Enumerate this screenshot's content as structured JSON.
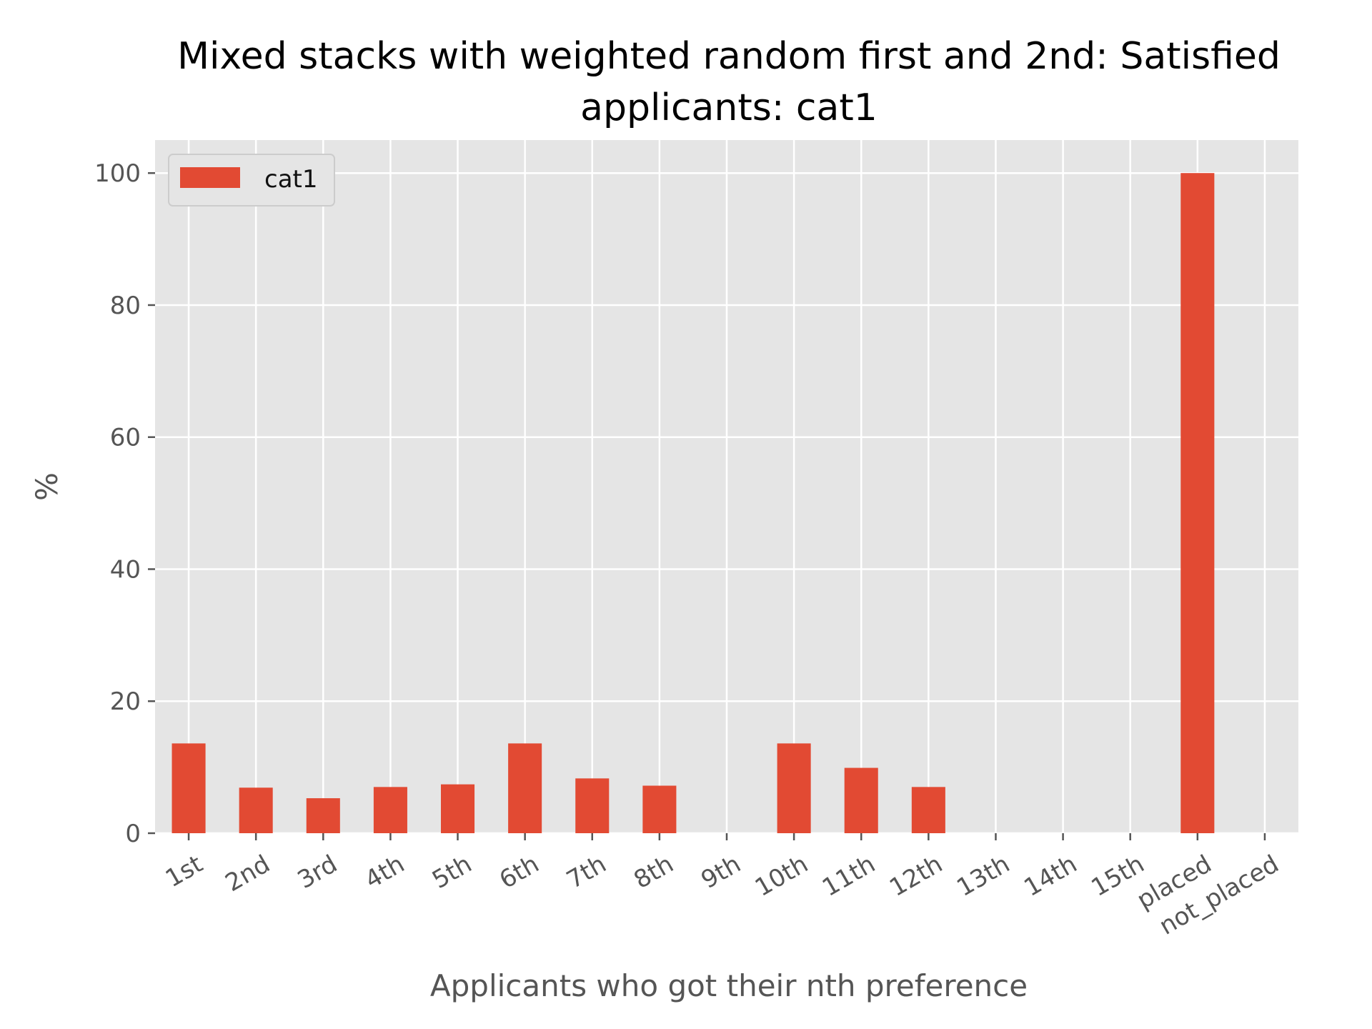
{
  "chart_data": {
    "type": "bar",
    "title_line1": "Mixed stacks with weighted random first and 2nd: Satisfied",
    "title_line2": "applicants: cat1",
    "xlabel": "Applicants who got their nth preference",
    "ylabel": "%",
    "categories": [
      "1st",
      "2nd",
      "3rd",
      "4th",
      "5th",
      "6th",
      "7th",
      "8th",
      "9th",
      "10th",
      "11th",
      "12th",
      "13th",
      "14th",
      "15th",
      "placed",
      "not_placed"
    ],
    "series": [
      {
        "name": "cat1",
        "color": "#E24A33",
        "values": [
          13.6,
          6.9,
          5.3,
          7.0,
          7.4,
          13.6,
          8.3,
          7.2,
          0,
          13.6,
          9.9,
          7.0,
          0,
          0,
          0,
          100,
          0
        ]
      }
    ],
    "ylim": [
      0,
      105
    ],
    "yticks": [
      0,
      20,
      40,
      60,
      80,
      100
    ],
    "grid": true,
    "legend_position": "top-left",
    "background_color": "#E5E5E5",
    "grid_color": "#FFFFFF"
  }
}
